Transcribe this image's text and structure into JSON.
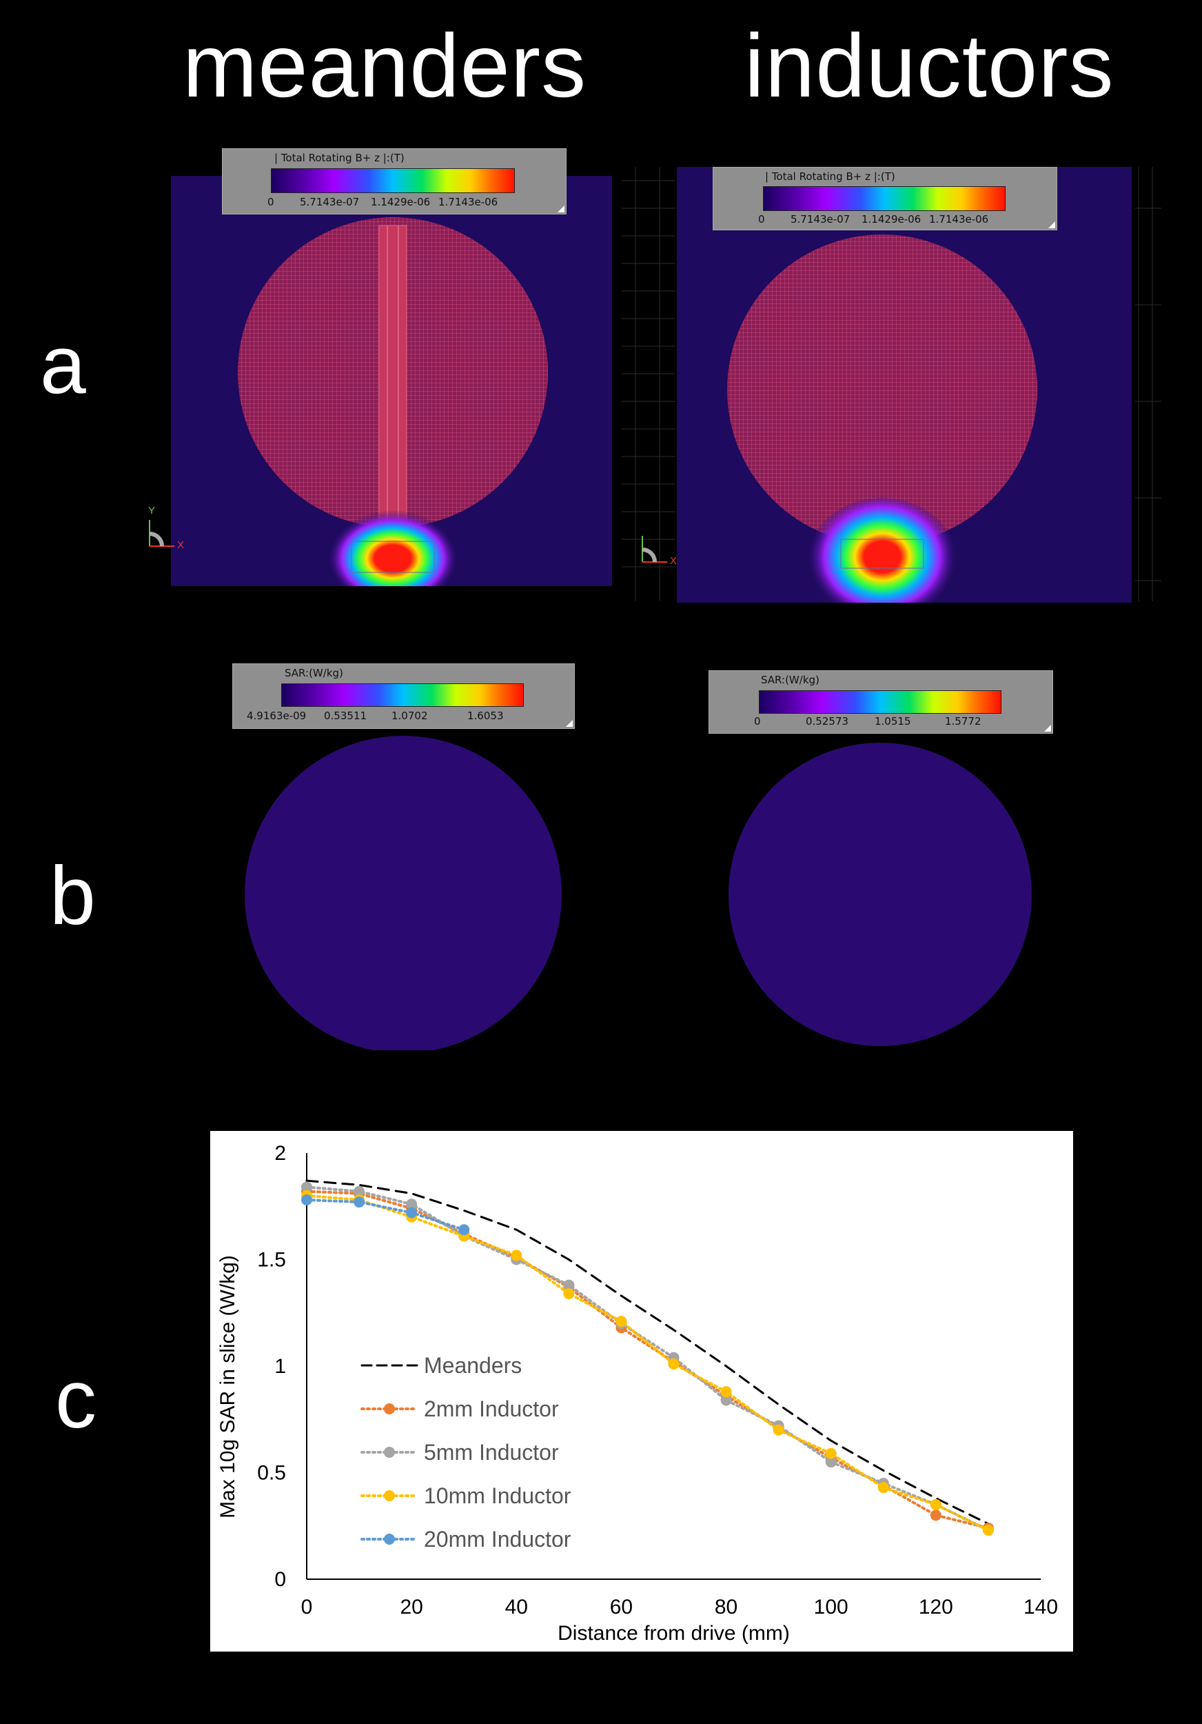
{
  "columns": {
    "left": "meanders",
    "right": "inductors"
  },
  "rows": {
    "a": "a",
    "b": "b",
    "c": "c"
  },
  "panel_a": {
    "left_legend": {
      "title": "| Total Rotating B+ z |:(T)",
      "ticks": [
        "0",
        "5.7143e-07",
        "1.1429e-06",
        "1.7143e-06"
      ]
    },
    "right_legend": {
      "title": "| Total Rotating B+ z |:(T)",
      "ticks": [
        "0",
        "5.7143e-07",
        "1.1429e-06",
        "1.7143e-06"
      ]
    },
    "axis_labels": {
      "y": "Y",
      "x": "X"
    }
  },
  "panel_b": {
    "left_legend": {
      "title": "SAR:(W/kg)",
      "ticks": [
        "4.9163e-09",
        "0.53511",
        "1.0702",
        "1.6053"
      ]
    },
    "right_legend": {
      "title": "SAR:(W/kg)",
      "ticks": [
        "0",
        "0.52573",
        "1.0515",
        "1.5772"
      ]
    }
  },
  "colors": {
    "background": "#000000",
    "field_base": "#1e0a5e",
    "mesh": "#c0306a",
    "hot": "#ff1a10"
  },
  "chart_data": {
    "type": "line",
    "title": "",
    "xlabel": "Distance from drive (mm)",
    "ylabel": "Max 10g SAR in slice (W/kg)",
    "xlim": [
      0,
      140
    ],
    "ylim": [
      0,
      2
    ],
    "xticks": [
      0,
      20,
      40,
      60,
      80,
      100,
      120,
      140
    ],
    "yticks": [
      0,
      0.5,
      1,
      1.5,
      2
    ],
    "xtick_labels": [
      "0",
      "20",
      "40",
      "60",
      "80",
      "100",
      "120",
      "140"
    ],
    "ytick_labels": [
      "0",
      "0.5",
      "1",
      "1.5",
      "2"
    ],
    "grid": false,
    "legend_position": "center-left",
    "series": [
      {
        "name": "Meanders",
        "style": "dashed",
        "markers": false,
        "color": "#000000",
        "x": [
          0,
          10,
          20,
          30,
          40,
          50,
          60,
          70,
          80,
          90,
          100,
          110,
          120,
          130
        ],
        "y": [
          1.87,
          1.85,
          1.81,
          1.73,
          1.64,
          1.5,
          1.33,
          1.17,
          1.0,
          0.82,
          0.65,
          0.51,
          0.38,
          0.26
        ]
      },
      {
        "name": "2mm Inductor",
        "style": "dotted",
        "markers": true,
        "color": "#ed7d31",
        "x": [
          0,
          10,
          20,
          30,
          40,
          50,
          60,
          70,
          80,
          90,
          100,
          110,
          120,
          130
        ],
        "y": [
          1.82,
          1.81,
          1.74,
          1.62,
          1.51,
          1.37,
          1.18,
          1.02,
          0.86,
          0.71,
          0.57,
          0.44,
          0.3,
          0.24
        ]
      },
      {
        "name": "5mm Inductor",
        "style": "dotted",
        "markers": true,
        "color": "#a5a5a5",
        "x": [
          0,
          10,
          20,
          30,
          40,
          50,
          60,
          70,
          80,
          90,
          100,
          110,
          120,
          130
        ],
        "y": [
          1.84,
          1.82,
          1.76,
          1.61,
          1.5,
          1.38,
          1.2,
          1.04,
          0.84,
          0.72,
          0.55,
          0.45,
          0.35,
          0.23
        ]
      },
      {
        "name": "10mm Inductor",
        "style": "dotted",
        "markers": true,
        "color": "#ffc000",
        "x": [
          0,
          10,
          20,
          30,
          40,
          50,
          60,
          70,
          80,
          90,
          100,
          110,
          120,
          130
        ],
        "y": [
          1.8,
          1.78,
          1.7,
          1.61,
          1.52,
          1.34,
          1.21,
          1.01,
          0.88,
          0.7,
          0.59,
          0.43,
          0.35,
          0.23
        ]
      },
      {
        "name": "20mm Inductor",
        "style": "dotted",
        "markers": true,
        "color": "#5b9bd5",
        "x": [
          0,
          10,
          20,
          30
        ],
        "y": [
          1.78,
          1.77,
          1.72,
          1.64
        ]
      }
    ]
  }
}
